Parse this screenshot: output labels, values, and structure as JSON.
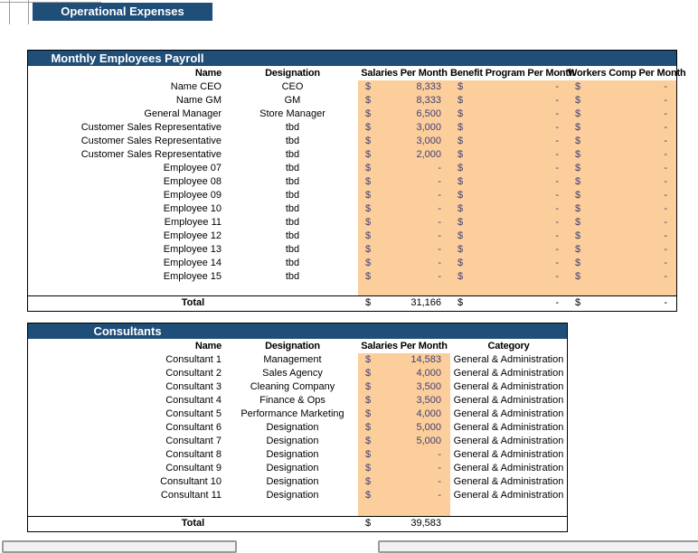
{
  "page_title": "Operational Expenses",
  "currency": "$",
  "colors": {
    "banner_bg": "#1F4E79",
    "banner_text": "#FFFFFF",
    "input_bg": "#FCCE9B",
    "input_text": "#3F3F76"
  },
  "payroll": {
    "title": "Monthly Employees Payroll",
    "columns": [
      "Name",
      "Designation",
      "Salaries Per Month",
      "Benefit Program Per Month",
      "Workers Comp Per Month"
    ],
    "rows": [
      {
        "name": "Name CEO",
        "designation": "CEO",
        "salary": "8,333",
        "benefit": "-",
        "workers_comp": "-"
      },
      {
        "name": "Name GM",
        "designation": "GM",
        "salary": "8,333",
        "benefit": "-",
        "workers_comp": "-"
      },
      {
        "name": "General Manager",
        "designation": "Store Manager",
        "salary": "6,500",
        "benefit": "-",
        "workers_comp": "-"
      },
      {
        "name": "Customer Sales Representative",
        "designation": "tbd",
        "salary": "3,000",
        "benefit": "-",
        "workers_comp": "-"
      },
      {
        "name": "Customer Sales Representative",
        "designation": "tbd",
        "salary": "3,000",
        "benefit": "-",
        "workers_comp": "-"
      },
      {
        "name": "Customer Sales Representative",
        "designation": "tbd",
        "salary": "2,000",
        "benefit": "-",
        "workers_comp": "-"
      },
      {
        "name": "Employee 07",
        "designation": "tbd",
        "salary": "-",
        "benefit": "-",
        "workers_comp": "-"
      },
      {
        "name": "Employee 08",
        "designation": "tbd",
        "salary": "-",
        "benefit": "-",
        "workers_comp": "-"
      },
      {
        "name": "Employee 09",
        "designation": "tbd",
        "salary": "-",
        "benefit": "-",
        "workers_comp": "-"
      },
      {
        "name": "Employee 10",
        "designation": "tbd",
        "salary": "-",
        "benefit": "-",
        "workers_comp": "-"
      },
      {
        "name": "Employee 11",
        "designation": "tbd",
        "salary": "-",
        "benefit": "-",
        "workers_comp": "-"
      },
      {
        "name": "Employee 12",
        "designation": "tbd",
        "salary": "-",
        "benefit": "-",
        "workers_comp": "-"
      },
      {
        "name": "Employee 13",
        "designation": "tbd",
        "salary": "-",
        "benefit": "-",
        "workers_comp": "-"
      },
      {
        "name": "Employee 14",
        "designation": "tbd",
        "salary": "-",
        "benefit": "-",
        "workers_comp": "-"
      },
      {
        "name": "Employee 15",
        "designation": "tbd",
        "salary": "-",
        "benefit": "-",
        "workers_comp": "-"
      }
    ],
    "total": {
      "label": "Total",
      "salary": "31,166",
      "benefit": "-",
      "workers_comp": "-"
    }
  },
  "consultants": {
    "title": "Consultants",
    "columns": [
      "Name",
      "Designation",
      "Salaries Per Month",
      "Category"
    ],
    "rows": [
      {
        "name": "Consultant 1",
        "designation": "Management",
        "salary": "14,583",
        "category": "General & Administration"
      },
      {
        "name": "Consultant 2",
        "designation": "Sales Agency",
        "salary": "4,000",
        "category": "General & Administration"
      },
      {
        "name": "Consultant 3",
        "designation": "Cleaning Company",
        "salary": "3,500",
        "category": "General & Administration"
      },
      {
        "name": "Consultant 4",
        "designation": "Finance & Ops",
        "salary": "3,500",
        "category": "General & Administration"
      },
      {
        "name": "Consultant 5",
        "designation": "Performance Marketing",
        "salary": "4,000",
        "category": "General & Administration"
      },
      {
        "name": "Consultant 6",
        "designation": "Designation",
        "salary": "5,000",
        "category": "General & Administration"
      },
      {
        "name": "Consultant 7",
        "designation": "Designation",
        "salary": "5,000",
        "category": "General & Administration"
      },
      {
        "name": "Consultant 8",
        "designation": "Designation",
        "salary": "-",
        "category": "General & Administration"
      },
      {
        "name": "Consultant 9",
        "designation": "Designation",
        "salary": "-",
        "category": "General & Administration"
      },
      {
        "name": "Consultant 10",
        "designation": "Designation",
        "salary": "-",
        "category": "General & Administration"
      },
      {
        "name": "Consultant 11",
        "designation": "Designation",
        "salary": "-",
        "category": "General & Administration"
      }
    ],
    "total": {
      "label": "Total",
      "salary": "39,583"
    }
  }
}
